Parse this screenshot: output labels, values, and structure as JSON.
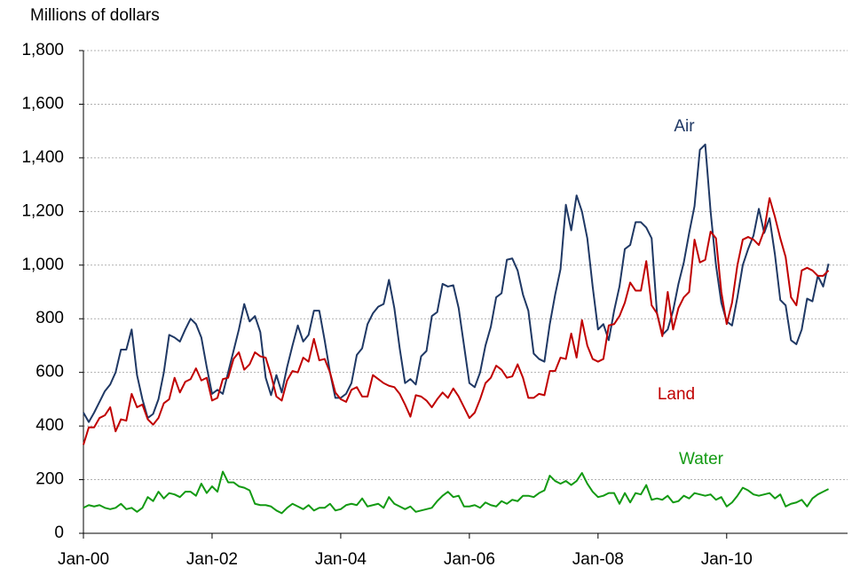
{
  "chart_data": {
    "type": "line",
    "y_axis_title": "Millions of dollars",
    "categories": [
      "Jan-00",
      null,
      null,
      null,
      null,
      null,
      null,
      null,
      null,
      null,
      null,
      null,
      null,
      null,
      null,
      null,
      null,
      null,
      null,
      null,
      null,
      null,
      null,
      null,
      "Jan-02",
      null,
      null,
      null,
      null,
      null,
      null,
      null,
      null,
      null,
      null,
      null,
      null,
      null,
      null,
      null,
      null,
      null,
      null,
      null,
      null,
      null,
      null,
      null,
      "Jan-04",
      null,
      null,
      null,
      null,
      null,
      null,
      null,
      null,
      null,
      null,
      null,
      null,
      null,
      null,
      null,
      null,
      null,
      null,
      null,
      null,
      null,
      null,
      null,
      "Jan-06",
      null,
      null,
      null,
      null,
      null,
      null,
      null,
      null,
      null,
      null,
      null,
      null,
      null,
      null,
      null,
      null,
      null,
      null,
      null,
      null,
      null,
      null,
      null,
      "Jan-08",
      null,
      null,
      null,
      null,
      null,
      null,
      null,
      null,
      null,
      null,
      null,
      null,
      null,
      null,
      null,
      null,
      null,
      null,
      null,
      null,
      null,
      null,
      null,
      "Jan-10",
      null,
      null,
      null,
      null,
      null,
      null,
      null,
      null,
      null,
      null,
      null,
      null,
      null,
      null,
      null,
      null,
      null,
      null,
      null
    ],
    "series": [
      {
        "name": "Air",
        "color": "#1f3864",
        "values": [
          450,
          415,
          450,
          490,
          530,
          555,
          600,
          685,
          685,
          760,
          590,
          500,
          430,
          445,
          500,
          600,
          740,
          730,
          715,
          760,
          800,
          780,
          730,
          620,
          520,
          535,
          520,
          600,
          680,
          760,
          855,
          790,
          810,
          750,
          580,
          515,
          590,
          525,
          620,
          700,
          775,
          715,
          740,
          830,
          830,
          720,
          600,
          505,
          505,
          520,
          560,
          665,
          690,
          780,
          820,
          845,
          855,
          945,
          840,
          690,
          560,
          575,
          555,
          660,
          680,
          810,
          825,
          930,
          920,
          925,
          840,
          700,
          560,
          545,
          600,
          700,
          770,
          880,
          895,
          1020,
          1025,
          980,
          890,
          830,
          670,
          650,
          640,
          780,
          890,
          985,
          1225,
          1130,
          1260,
          1200,
          1100,
          920,
          760,
          780,
          720,
          830,
          920,
          1060,
          1075,
          1160,
          1160,
          1140,
          1100,
          820,
          740,
          760,
          830,
          930,
          1010,
          1120,
          1220,
          1430,
          1450,
          1200,
          1000,
          860,
          790,
          775,
          880,
          1000,
          1060,
          1110,
          1210,
          1120,
          1175,
          1040,
          870,
          850,
          720,
          705,
          760,
          875,
          865,
          960,
          920,
          1005
        ]
      },
      {
        "name": "Land",
        "color": "#c00000",
        "values": [
          330,
          395,
          395,
          430,
          440,
          470,
          380,
          425,
          420,
          520,
          470,
          480,
          425,
          405,
          430,
          485,
          500,
          580,
          525,
          565,
          575,
          615,
          570,
          580,
          495,
          505,
          575,
          580,
          650,
          675,
          610,
          630,
          675,
          660,
          655,
          590,
          510,
          495,
          570,
          605,
          600,
          655,
          640,
          725,
          645,
          650,
          600,
          525,
          500,
          490,
          535,
          545,
          510,
          510,
          590,
          575,
          560,
          550,
          545,
          520,
          480,
          435,
          515,
          510,
          495,
          470,
          500,
          525,
          505,
          540,
          510,
          470,
          430,
          450,
          500,
          560,
          580,
          625,
          610,
          580,
          585,
          630,
          580,
          505,
          505,
          520,
          515,
          605,
          605,
          655,
          650,
          745,
          655,
          795,
          700,
          650,
          640,
          650,
          775,
          780,
          810,
          860,
          935,
          905,
          905,
          1015,
          850,
          820,
          735,
          900,
          760,
          840,
          880,
          900,
          1095,
          1010,
          1020,
          1125,
          1100,
          900,
          780,
          860,
          1000,
          1095,
          1105,
          1095,
          1075,
          1130,
          1250,
          1180,
          1100,
          1030,
          880,
          850,
          980,
          990,
          980,
          960,
          960,
          980
        ]
      },
      {
        "name": "Water",
        "color": "#139a13",
        "values": [
          95,
          105,
          100,
          105,
          95,
          90,
          95,
          110,
          90,
          95,
          80,
          95,
          135,
          120,
          155,
          130,
          150,
          145,
          135,
          155,
          155,
          140,
          185,
          150,
          175,
          155,
          230,
          190,
          190,
          175,
          170,
          160,
          110,
          105,
          105,
          100,
          85,
          75,
          95,
          110,
          100,
          90,
          105,
          85,
          95,
          95,
          110,
          85,
          90,
          105,
          110,
          105,
          130,
          100,
          105,
          110,
          95,
          135,
          110,
          100,
          90,
          100,
          80,
          85,
          90,
          95,
          120,
          140,
          155,
          135,
          140,
          100,
          100,
          105,
          95,
          115,
          105,
          100,
          120,
          110,
          125,
          120,
          140,
          140,
          135,
          150,
          160,
          215,
          195,
          185,
          195,
          180,
          195,
          225,
          185,
          155,
          135,
          140,
          150,
          150,
          110,
          150,
          115,
          150,
          145,
          180,
          125,
          130,
          125,
          140,
          115,
          120,
          140,
          130,
          150,
          145,
          140,
          145,
          125,
          135,
          100,
          115,
          140,
          170,
          160,
          145,
          140,
          145,
          150,
          130,
          145,
          100,
          110,
          115,
          125,
          100,
          130,
          145,
          155,
          165
        ]
      }
    ],
    "ylim": [
      0,
      1800
    ],
    "yticks": [
      0,
      200,
      400,
      600,
      800,
      {
        "value": 1000,
        "label": "1,000"
      },
      {
        "value": 1200,
        "label": "1,200"
      },
      {
        "value": 1400,
        "label": "1,400"
      },
      {
        "value": 1600,
        "label": "1,600"
      },
      {
        "value": 1800,
        "label": "1,800"
      }
    ],
    "grid": true
  }
}
